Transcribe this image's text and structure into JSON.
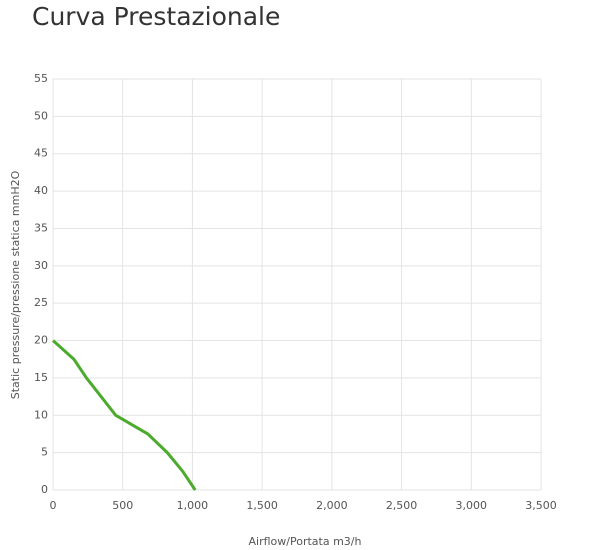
{
  "chart_data": {
    "type": "line",
    "title": "Curva Prestazionale",
    "x_label": "Airflow/Portata m3/h",
    "y_label": "Static pressure/pressione statica mmH2O",
    "x": [
      0,
      150,
      240,
      450,
      680,
      820,
      930,
      1020
    ],
    "values": [
      20,
      17.5,
      15,
      10,
      7.5,
      5,
      2.5,
      0
    ],
    "color": "#4caa2c",
    "xlim": [
      0,
      3500
    ],
    "xticks": [
      0,
      500,
      {
        "value": 1000,
        "label": "1,000"
      },
      {
        "value": 1500,
        "label": "1,500"
      },
      {
        "value": 2000,
        "label": "2,000"
      },
      {
        "value": 2500,
        "label": "2,500"
      },
      {
        "value": 3000,
        "label": "3,000"
      },
      {
        "value": 3500,
        "label": "3,500"
      }
    ],
    "ylim": [
      0,
      55
    ],
    "yticks": [
      0,
      5,
      10,
      15,
      20,
      25,
      30,
      35,
      40,
      45,
      50,
      55
    ],
    "grid": true
  }
}
